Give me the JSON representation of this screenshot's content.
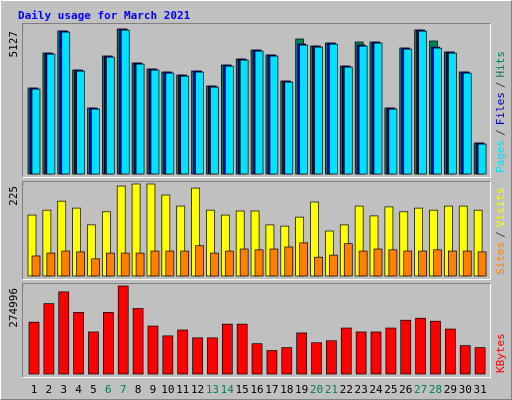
{
  "chart_data": [
    {
      "type": "bar",
      "title": "Daily usage for March 2021",
      "ylim": [
        0,
        5127
      ],
      "yticks": [
        5127
      ],
      "legend_separator": "/",
      "legend_position": "right",
      "series": [
        {
          "name": "Hits",
          "color": "#00805c",
          "values": [
            3041,
            4278,
            5057,
            3677,
            2334,
            4172,
            5127,
            3925,
            3713,
            3607,
            3500,
            3642,
            3112,
            3854,
            4066,
            4384,
            4208,
            3288,
            4773,
            4526,
            4632,
            3819,
            4667,
            4667,
            2334,
            4455,
            5092,
            4703,
            4314,
            3607,
            1096
          ]
        },
        {
          "name": "Files",
          "color": "#0000c0",
          "values": [
            3041,
            4278,
            5057,
            3677,
            2334,
            4172,
            5127,
            3925,
            3713,
            3607,
            3500,
            3642,
            3112,
            3854,
            4066,
            4384,
            4208,
            3288,
            4597,
            4526,
            4632,
            3819,
            4562,
            4667,
            2334,
            4455,
            5092,
            4490,
            4314,
            3607,
            1096
          ]
        },
        {
          "name": "Pages",
          "color": "#00e0ff",
          "values": [
            3001,
            4238,
            5017,
            3637,
            2294,
            4132,
            5087,
            3885,
            3673,
            3567,
            3460,
            3602,
            3072,
            3814,
            4026,
            4344,
            4168,
            3248,
            4557,
            4486,
            4592,
            3779,
            4522,
            4627,
            2294,
            4415,
            5052,
            4450,
            4274,
            3567,
            1056
          ]
        }
      ]
    },
    {
      "type": "bar",
      "ylim": [
        0,
        225
      ],
      "yticks": [
        225
      ],
      "legend_separator": "/",
      "legend_position": "right",
      "series": [
        {
          "name": "Visits",
          "color": "#ffff00",
          "values": [
            149,
            161,
            183,
            166,
            125,
            157,
            220,
            225,
            225,
            198,
            171,
            215,
            161,
            149,
            159,
            159,
            125,
            122,
            144,
            181,
            110,
            125,
            171,
            147,
            169,
            157,
            166,
            161,
            171,
            171,
            161
          ]
        },
        {
          "name": "Sites",
          "color": "#ff8000",
          "values": [
            49,
            56,
            61,
            59,
            42,
            56,
            56,
            56,
            61,
            61,
            61,
            74,
            56,
            61,
            66,
            64,
            66,
            71,
            81,
            46,
            51,
            79,
            61,
            66,
            64,
            61,
            61,
            64,
            61,
            61,
            59
          ]
        }
      ]
    },
    {
      "type": "bar",
      "ylim": [
        0,
        274996
      ],
      "yticks": [
        274996
      ],
      "legend_position": "right",
      "series": [
        {
          "name": "KBytes",
          "color": "#ff0000",
          "values": [
            161942,
            220000,
            256663,
            192497,
            131387,
            192497,
            274996,
            204719,
            149720,
            119165,
            137498,
            113054,
            113054,
            155831,
            155831,
            94721,
            73332,
            82499,
            128331,
            97776,
            103888,
            143609,
            131387,
            131387,
            143609,
            168053,
            174164,
            164998,
            140553,
            88610,
            82499
          ]
        }
      ],
      "categories": [
        "1",
        "2",
        "3",
        "4",
        "5",
        "6",
        "7",
        "8",
        "9",
        "10",
        "11",
        "12",
        "13",
        "14",
        "15",
        "16",
        "17",
        "18",
        "19",
        "20",
        "21",
        "22",
        "23",
        "24",
        "25",
        "26",
        "27",
        "28",
        "29",
        "30",
        "31"
      ],
      "category_colors": [
        "#000000",
        "#000000",
        "#000000",
        "#000000",
        "#000000",
        "#00805c",
        "#00805c",
        "#000000",
        "#000000",
        "#000000",
        "#000000",
        "#000000",
        "#00805c",
        "#00805c",
        "#000000",
        "#000000",
        "#000000",
        "#000000",
        "#000000",
        "#00805c",
        "#00805c",
        "#000000",
        "#000000",
        "#000000",
        "#000000",
        "#000000",
        "#00805c",
        "#00805c",
        "#000000",
        "#000000",
        "#000000"
      ]
    }
  ]
}
